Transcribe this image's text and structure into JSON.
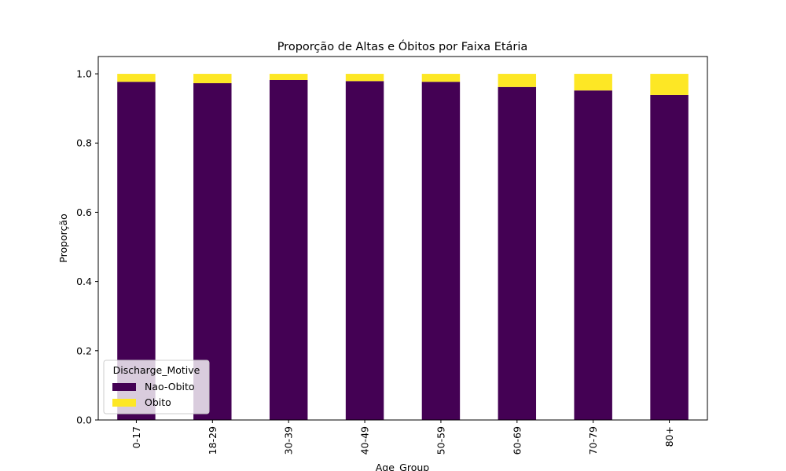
{
  "chart_data": {
    "type": "bar",
    "stacked": true,
    "title": "Proporção de Altas e Óbitos por Faixa Etária",
    "xlabel": "Age_Group",
    "ylabel": "Proporção",
    "ylim": [
      0,
      1.05
    ],
    "yticks": [
      "0.0",
      "0.2",
      "0.4",
      "0.6",
      "0.8",
      "1.0"
    ],
    "categories": [
      "0-17",
      "18-29",
      "30-39",
      "40-49",
      "50-59",
      "60-69",
      "70-79",
      "80+"
    ],
    "series": [
      {
        "name": "Nao-Obito",
        "color": "#440154",
        "values": [
          0.977,
          0.973,
          0.982,
          0.979,
          0.977,
          0.962,
          0.952,
          0.939
        ]
      },
      {
        "name": "Obito",
        "color": "#fde725",
        "values": [
          0.023,
          0.027,
          0.018,
          0.021,
          0.023,
          0.038,
          0.048,
          0.061
        ]
      }
    ],
    "legend": {
      "title": "Discharge_Motive",
      "placement": "lower-left"
    },
    "grid": false
  }
}
